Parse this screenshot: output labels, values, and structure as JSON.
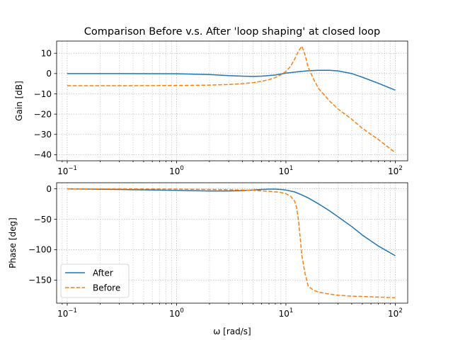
{
  "chart_data": [
    {
      "type": "line",
      "title": "Comparison Before v.s. After 'loop shaping' at closed loop",
      "xlabel": "",
      "ylabel": "Gain [dB]",
      "xscale": "log",
      "xlim": [
        0.08,
        130
      ],
      "ylim": [
        -43,
        16
      ],
      "xticks": [
        0.1,
        1,
        10,
        100
      ],
      "yticks": [
        10,
        0,
        -10,
        -20,
        -30,
        -40
      ],
      "grid": "on (major and minor, dotted)",
      "series": [
        {
          "name": "After",
          "color": "#1f77b4",
          "linestyle": "solid",
          "x": [
            0.1,
            0.3,
            1,
            2,
            3,
            4,
            5,
            6,
            8,
            10,
            13,
            16,
            20,
            25,
            30,
            40,
            50,
            70,
            100
          ],
          "y": [
            0,
            0,
            -0.1,
            -0.5,
            -1.0,
            -1.3,
            -1.4,
            -1.3,
            -0.7,
            0.2,
            0.9,
            1.4,
            1.6,
            1.6,
            1.3,
            0,
            -1.8,
            -4.8,
            -8.2
          ]
        },
        {
          "name": "Before",
          "color": "#ff7f0e",
          "linestyle": "dashed",
          "x": [
            0.1,
            0.3,
            1,
            2,
            3,
            4,
            5,
            6,
            7,
            8,
            9,
            10,
            11,
            12,
            13,
            14,
            15,
            16,
            18,
            20,
            25,
            30,
            40,
            50,
            70,
            100
          ],
          "y": [
            -6.0,
            -6.0,
            -5.9,
            -5.7,
            -5.4,
            -5.0,
            -4.5,
            -3.8,
            -3.0,
            -2.0,
            -0.6,
            1.0,
            3.5,
            7.0,
            11.0,
            13.5,
            9.0,
            3.0,
            -3.0,
            -7.5,
            -13.5,
            -17.5,
            -22.5,
            -27.0,
            -32.5,
            -39.0
          ]
        }
      ]
    },
    {
      "type": "line",
      "title": "",
      "xlabel": "ω [rad/s]",
      "ylabel": "Phase [deg]",
      "xscale": "log",
      "xlim": [
        0.08,
        130
      ],
      "ylim": [
        -188,
        10
      ],
      "xticks": [
        0.1,
        1,
        10,
        100
      ],
      "yticks": [
        0,
        -50,
        -100,
        -150
      ],
      "grid": "on (major and minor, dotted)",
      "legend": "lower-left",
      "series": [
        {
          "name": "After",
          "color": "#1f77b4",
          "linestyle": "solid",
          "x": [
            0.1,
            0.3,
            1,
            2,
            3,
            4,
            5,
            6,
            7,
            8,
            9,
            10,
            12,
            14,
            16,
            20,
            25,
            30,
            40,
            50,
            70,
            100
          ],
          "y": [
            0,
            -1,
            -2.5,
            -3.5,
            -3.5,
            -3.0,
            -2.0,
            -1.0,
            -0.5,
            -0.5,
            -1.0,
            -2.0,
            -5.0,
            -10,
            -15,
            -25,
            -36,
            -46,
            -62,
            -76,
            -94,
            -110
          ]
        },
        {
          "name": "Before",
          "color": "#ff7f0e",
          "linestyle": "dashed",
          "x": [
            0.1,
            0.3,
            1,
            2,
            3,
            4,
            5,
            6,
            7,
            8,
            9,
            10,
            11,
            12,
            12.5,
            13,
            13.5,
            14,
            15,
            16,
            18,
            20,
            25,
            30,
            40,
            50,
            70,
            100
          ],
          "y": [
            0,
            0,
            -0.5,
            -1,
            -1.5,
            -2,
            -2.5,
            -3.5,
            -4,
            -5,
            -6,
            -8,
            -12,
            -20,
            -30,
            -50,
            -80,
            -110,
            -140,
            -160,
            -167,
            -170,
            -173,
            -175,
            -176.5,
            -177,
            -178,
            -179
          ]
        }
      ]
    }
  ]
}
